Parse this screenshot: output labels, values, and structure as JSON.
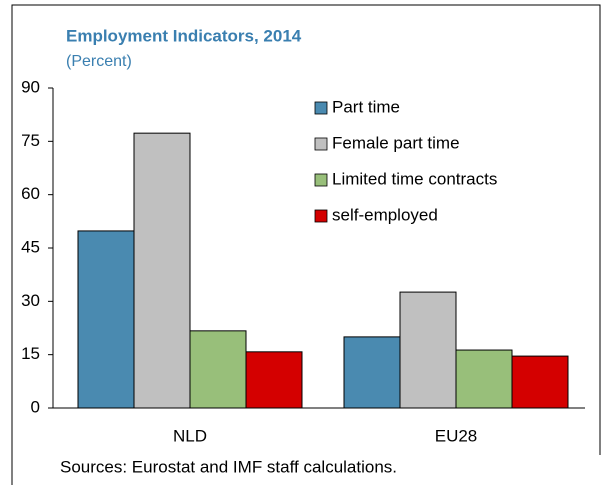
{
  "chart_data": {
    "type": "bar",
    "title": "Employment Indicators, 2014",
    "subtitle": "(Percent)",
    "categories": [
      "NLD",
      "EU28"
    ],
    "series": [
      {
        "name": "Part time",
        "color": "#4a8ab0",
        "values": [
          49.8,
          20.0
        ]
      },
      {
        "name": "Female part time",
        "color": "#c0c0c0",
        "values": [
          77.3,
          32.6
        ]
      },
      {
        "name": "Limited time contracts",
        "color": "#98bf7a",
        "values": [
          21.7,
          16.3
        ]
      },
      {
        "name": "self-employed",
        "color": "#d40000",
        "values": [
          15.8,
          14.6
        ]
      }
    ],
    "ylim": [
      0,
      90
    ],
    "yticks": [
      0,
      15,
      30,
      45,
      60,
      75,
      90
    ],
    "note": "Sources: Eurostat and IMF staff calculations."
  }
}
